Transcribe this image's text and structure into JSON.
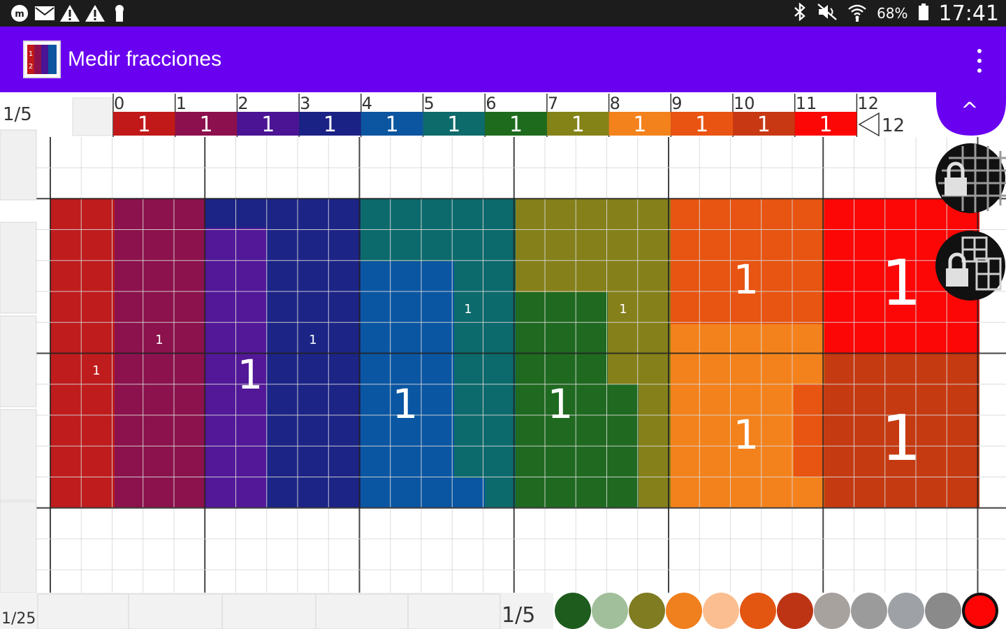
{
  "status_bar": {
    "left_icons": [
      "notification-m-icon",
      "mail-icon",
      "warning-icon",
      "warning-icon",
      "keyhole-icon"
    ],
    "right_icons": [
      "bluetooth-icon",
      "mute-icon",
      "wifi-icon"
    ],
    "battery": "68%",
    "time": "17:41"
  },
  "app_bar": {
    "title": "Medir fracciones",
    "app_icon": "fractions-app-icon",
    "menu_icon": "more-vertical-icon"
  },
  "ruler": {
    "left_label": "1/5",
    "ticks": [
      "0",
      "1",
      "2",
      "3",
      "4",
      "5",
      "6",
      "7",
      "8",
      "9",
      "10",
      "11",
      "12"
    ],
    "segment_label": "1",
    "segment_colors": [
      "#c1191a",
      "#8c104d",
      "#4a1494",
      "#1b2286",
      "#0c55a0",
      "#0e6b6b",
      "#1f6b1e",
      "#848318",
      "#f4821c",
      "#ea5412",
      "#c83812",
      "#fc0606"
    ],
    "end_label": "12"
  },
  "blocks": {
    "labels": [
      "1",
      "1",
      "1",
      "1",
      "1",
      "1",
      "1",
      "1",
      "1",
      "1",
      "1",
      "1"
    ],
    "colors": {
      "red": "#bf1c1d",
      "magenta": "#8b124c",
      "purple": "#521898",
      "navy": "#1c2486",
      "teal": "#0c6a6c",
      "blue": "#0a56a2",
      "olive": "#85801a",
      "green": "#1f6a20",
      "orange_dark": "#e85412",
      "orange": "#f4821c",
      "bright_red": "#fd0606",
      "rust": "#c63a12"
    }
  },
  "bottom_bar": {
    "left_label": "1/25",
    "mid_label": "1/5",
    "palette_colors": [
      "#1e5c1e",
      "#a1bf9a",
      "#7f7c22",
      "#f07f1d",
      "#fbbe91",
      "#e35612",
      "#bc3414",
      "#a8a29f",
      "#9b9b9b",
      "#9ea2a6",
      "#8a8a8a",
      "#fd0505"
    ]
  },
  "fabs": {
    "collapse": "chevron-up-icon",
    "lock_grid": "lock-grid-icon",
    "lock_pieces": "lock-pieces-icon"
  }
}
